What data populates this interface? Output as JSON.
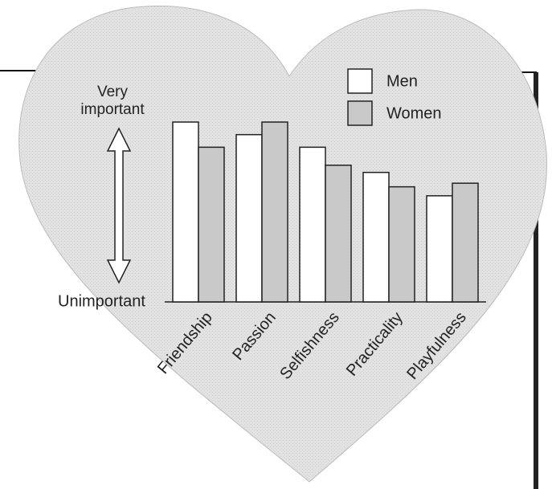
{
  "chart_data": {
    "type": "bar",
    "y_top_label": "Very important",
    "y_bottom_label": "Unimportant",
    "categories": [
      "Friendship",
      "Passion",
      "Selfishness",
      "Practicality",
      "Playfulness"
    ],
    "series": [
      {
        "name": "Men",
        "color": "#ffffff",
        "values": [
          100,
          93,
          86,
          72,
          59
        ]
      },
      {
        "name": "Women",
        "color": "#c9c9c9",
        "values": [
          86,
          100,
          76,
          64,
          66
        ]
      }
    ],
    "ylim": [
      0,
      100
    ]
  }
}
